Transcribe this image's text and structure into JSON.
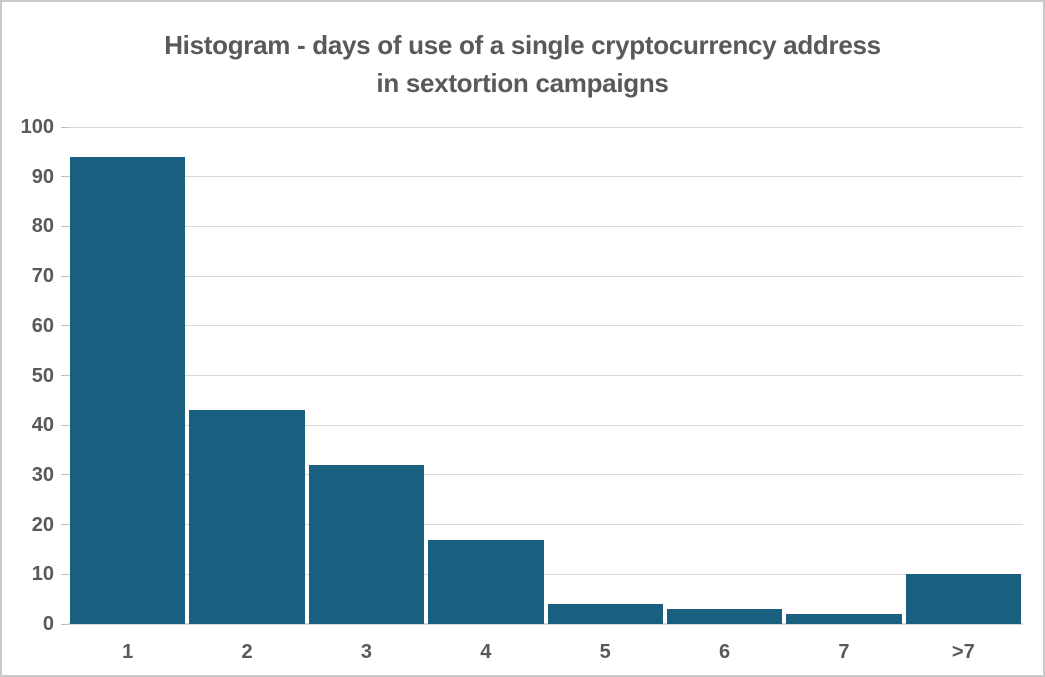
{
  "chart": {
    "title_line1": "Histogram - days of use of a single cryptocurrency address",
    "title_line2": "in sextortion campaigns"
  },
  "chart_data": {
    "type": "bar",
    "title": "Histogram - days of use of a single cryptocurrency address in sextortion campaigns",
    "categories": [
      "1",
      "2",
      "3",
      "4",
      "5",
      "6",
      "7",
      ">7"
    ],
    "values": [
      94,
      43,
      32,
      17,
      4,
      3,
      2,
      10
    ],
    "xlabel": "",
    "ylabel": "",
    "ylim": [
      0,
      100
    ],
    "ytick_step": 10,
    "grid": true,
    "legend": false,
    "colors": {
      "bar": "#1b5f80",
      "gridline": "#d9d9d9",
      "axis_line": "#d9d9d9",
      "tick_mark": "#bfbfbf",
      "text": "#595959",
      "border": "#c9c9c9",
      "background": "#ffffff"
    }
  }
}
